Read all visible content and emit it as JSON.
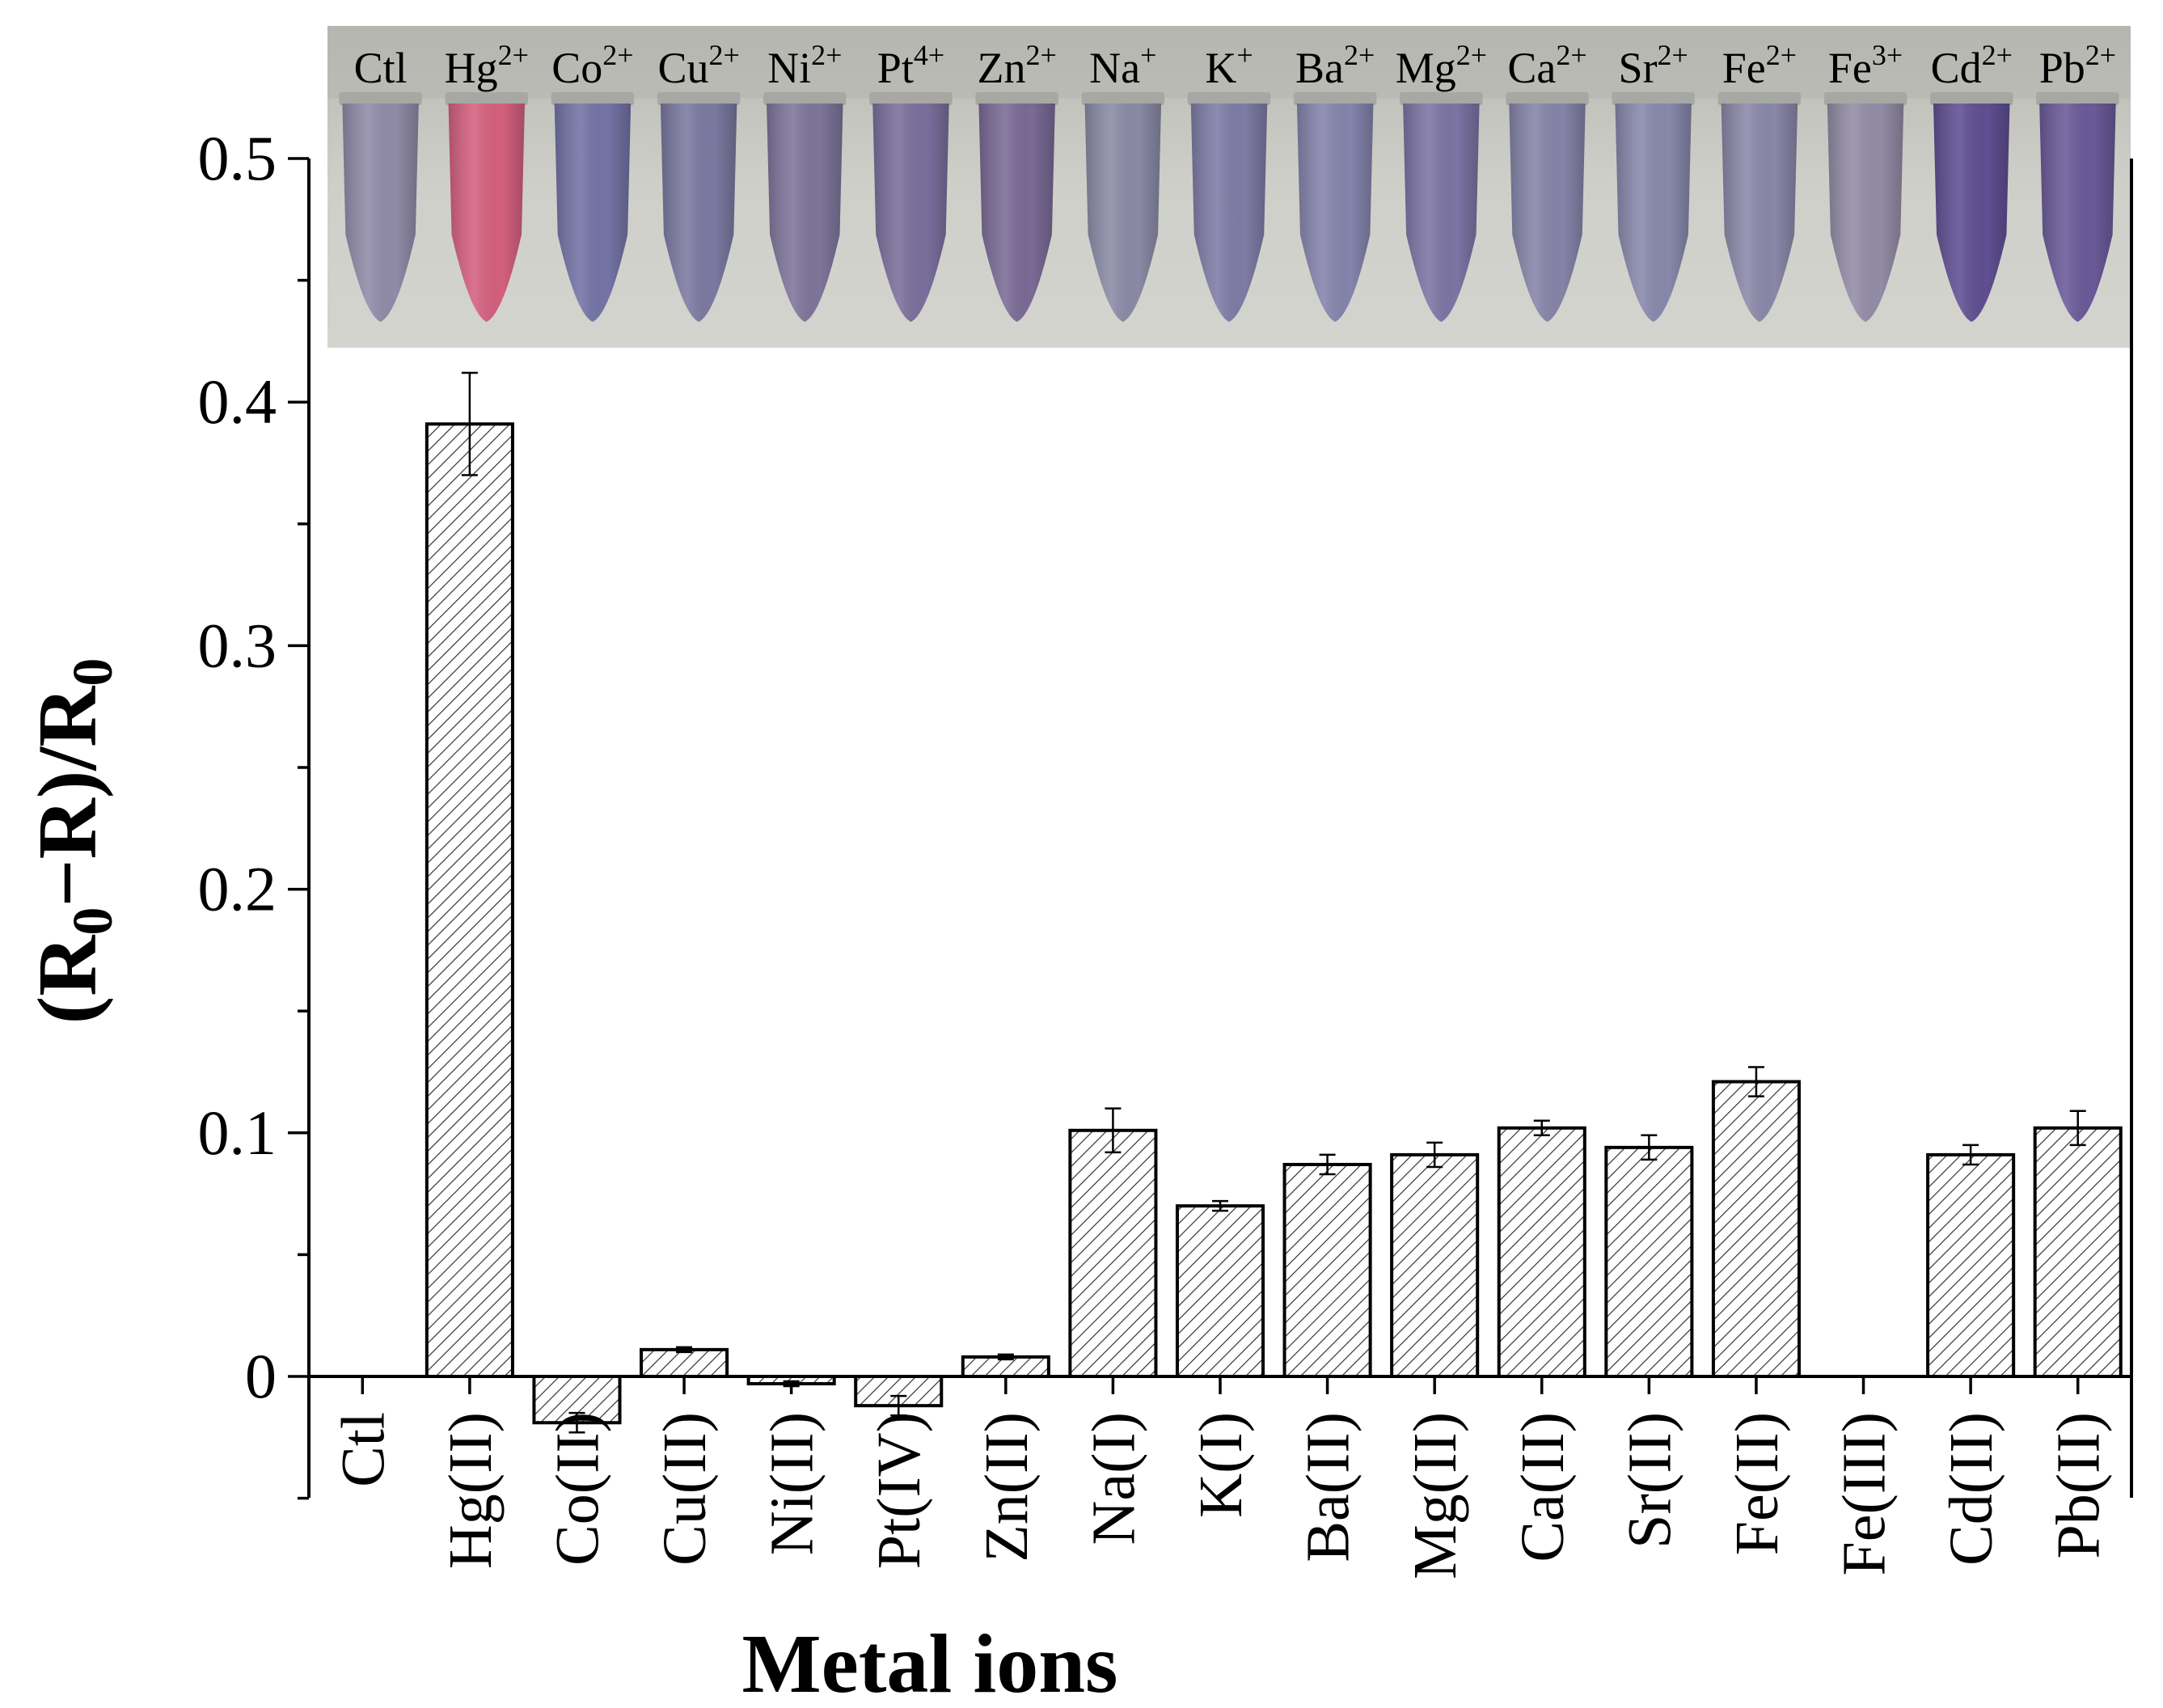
{
  "chart_data": {
    "type": "bar",
    "xlabel": "Metal ions",
    "ylabel": {
      "main": "(R",
      "sub1": "0",
      "mid": "−R)/R",
      "sub2": "0"
    },
    "ylim": [
      -0.05,
      0.5
    ],
    "yticks": [
      0,
      0.1,
      0.2,
      0.3,
      0.4,
      0.5
    ],
    "ytick_labels": [
      "0",
      "0.1",
      "0.2",
      "0.3",
      "0.4",
      "0.5"
    ],
    "grid": false,
    "bar_fill": "diagonal hatch",
    "categories": [
      "Ctl",
      "Hg(II)",
      "Co(II)",
      "Cu(II)",
      "Ni(II)",
      "Pt(IV)",
      "Zn(II)",
      "Na(I)",
      "K(I)",
      "Ba(II)",
      "Mg(II)",
      "Ca(II)",
      "Sr(II)",
      "Fe(II)",
      "Fe(III)",
      "Cd(II)",
      "Pb(II)"
    ],
    "values": [
      0,
      0.391,
      -0.019,
      0.011,
      -0.003,
      -0.012,
      0.008,
      0.101,
      0.07,
      0.087,
      0.091,
      0.102,
      0.094,
      0.121,
      0,
      0.091,
      0.102
    ],
    "errors": [
      0,
      0.021,
      0.004,
      0.001,
      0.001,
      0.004,
      0.001,
      0.009,
      0.002,
      0.004,
      0.005,
      0.003,
      0.005,
      0.006,
      0,
      0.004,
      0.007
    ],
    "inset_photo": {
      "labels": [
        {
          "base": "Ctl",
          "sup": ""
        },
        {
          "base": "Hg",
          "sup": "2+"
        },
        {
          "base": "Co",
          "sup": "2+"
        },
        {
          "base": "Cu",
          "sup": "2+"
        },
        {
          "base": "Ni",
          "sup": "2+"
        },
        {
          "base": "Pt",
          "sup": "4+"
        },
        {
          "base": "Zn",
          "sup": "2+"
        },
        {
          "base": "Na",
          "sup": "+"
        },
        {
          "base": "K",
          "sup": "+"
        },
        {
          "base": "Ba",
          "sup": "2+"
        },
        {
          "base": "Mg",
          "sup": "2+"
        },
        {
          "base": "Ca",
          "sup": "2+"
        },
        {
          "base": "Sr",
          "sup": "2+"
        },
        {
          "base": "Fe",
          "sup": "2+"
        },
        {
          "base": "Fe",
          "sup": "3+"
        },
        {
          "base": "Cd",
          "sup": "2+"
        },
        {
          "base": "Pb",
          "sup": "2+"
        }
      ],
      "tube_colors": [
        "#8f8ba8",
        "#d4607e",
        "#7373a6",
        "#7b79a0",
        "#7e759a",
        "#7a6f9c",
        "#7a6a95",
        "#8a8aa6",
        "#7e7ca6",
        "#8584ac",
        "#7c74a4",
        "#8584a8",
        "#8888ac",
        "#8a88a8",
        "#938ca6",
        "#5f4f92",
        "#6a5a98"
      ],
      "background_color": "#c9c9c3"
    }
  }
}
